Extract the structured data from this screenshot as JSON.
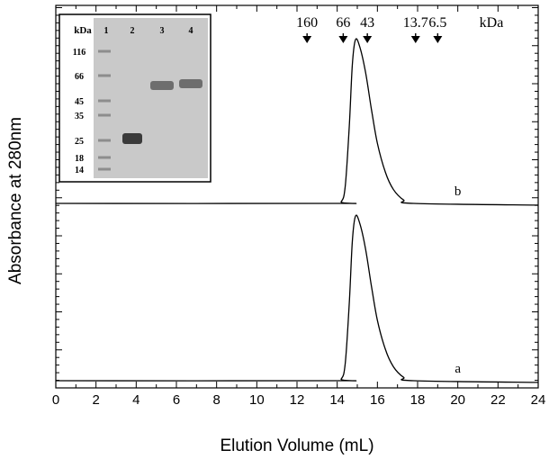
{
  "chart_data": {
    "type": "line",
    "title": "",
    "xlabel": "Elution Volume (mL)",
    "ylabel": "Absorbance at 280nm",
    "xlim": [
      0,
      24
    ],
    "x_ticks": [
      "0",
      "2",
      "4",
      "6",
      "8",
      "10",
      "12",
      "14",
      "16",
      "18",
      "20",
      "22",
      "24"
    ],
    "y_ticks_labeled": false,
    "grid": false,
    "series": [
      {
        "name": "a",
        "baseline": 0.05,
        "points": [
          [
            0,
            0.05
          ],
          [
            13.8,
            0.05
          ],
          [
            14.2,
            0.06
          ],
          [
            14.4,
            0.15
          ],
          [
            14.6,
            0.5
          ],
          [
            14.75,
            0.85
          ],
          [
            14.9,
            1.0
          ],
          [
            15.1,
            0.97
          ],
          [
            15.4,
            0.82
          ],
          [
            15.7,
            0.6
          ],
          [
            16.0,
            0.4
          ],
          [
            16.4,
            0.23
          ],
          [
            16.8,
            0.13
          ],
          [
            17.3,
            0.07
          ],
          [
            17.8,
            0.05
          ],
          [
            24,
            0.04
          ]
        ]
      },
      {
        "name": "b",
        "baseline": 0.05,
        "points": [
          [
            0,
            0.05
          ],
          [
            13.8,
            0.05
          ],
          [
            14.2,
            0.06
          ],
          [
            14.4,
            0.15
          ],
          [
            14.6,
            0.5
          ],
          [
            14.75,
            0.85
          ],
          [
            14.9,
            1.0
          ],
          [
            15.1,
            0.97
          ],
          [
            15.4,
            0.82
          ],
          [
            15.7,
            0.6
          ],
          [
            16.0,
            0.4
          ],
          [
            16.4,
            0.23
          ],
          [
            16.8,
            0.13
          ],
          [
            17.3,
            0.07
          ],
          [
            17.8,
            0.05
          ],
          [
            24,
            0.04
          ]
        ]
      }
    ],
    "markers": {
      "unit": "kDa",
      "items": [
        {
          "label": "160",
          "x": 12.5
        },
        {
          "label": "66",
          "x": 14.3
        },
        {
          "label": "43",
          "x": 15.5
        },
        {
          "label": "13.7",
          "x": 17.9
        },
        {
          "label": "6.5",
          "x": 19.0
        }
      ]
    },
    "inset": {
      "ladder_label": "kDa",
      "lane_labels": [
        "1",
        "2",
        "3",
        "4"
      ],
      "ladder_values": [
        "116",
        "66",
        "45",
        "35",
        "25",
        "18",
        "14"
      ]
    }
  }
}
